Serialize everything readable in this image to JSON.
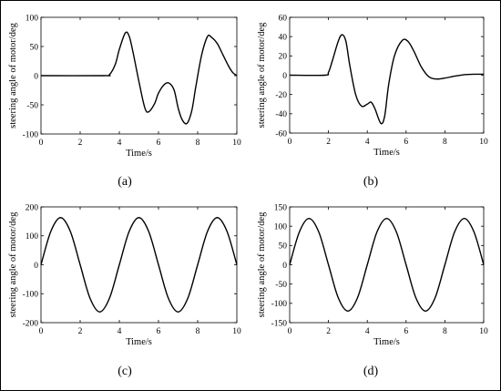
{
  "figure": {
    "border_color": "#000000",
    "line_color": "#000000"
  },
  "chart_data": [
    {
      "type": "line",
      "panel": "(a)",
      "xlabel": "Time/s",
      "ylabel": "steering angle of motor/deg",
      "xlim": [
        0,
        10
      ],
      "ylim": [
        -100,
        100
      ],
      "xticks": [
        0,
        2,
        4,
        6,
        8,
        10
      ],
      "yticks": [
        -100,
        -50,
        0,
        50,
        100
      ],
      "grid": false,
      "series": [
        {
          "x": [
            0,
            3.2,
            3.5,
            3.8,
            4.0,
            4.3,
            4.5,
            4.7,
            5.0,
            5.3,
            5.5,
            5.8,
            6.0,
            6.3,
            6.55,
            6.8,
            7.0,
            7.2,
            7.45,
            7.7,
            7.9,
            8.2,
            8.5,
            8.7,
            9.0,
            9.3,
            9.6,
            9.8,
            10.0
          ],
          "y": [
            0,
            0,
            2,
            20,
            45,
            73,
            68,
            40,
            -10,
            -55,
            -62,
            -48,
            -30,
            -15,
            -13,
            -25,
            -55,
            -75,
            -82,
            -60,
            -20,
            35,
            67,
            66,
            55,
            35,
            15,
            5,
            0
          ]
        }
      ]
    },
    {
      "type": "line",
      "panel": "(b)",
      "xlabel": "Time/s",
      "ylabel": "steering angle of motor/deg",
      "xlim": [
        0,
        10
      ],
      "ylim": [
        -60,
        60
      ],
      "xticks": [
        0,
        2,
        4,
        6,
        8,
        10
      ],
      "yticks": [
        -60,
        -40,
        -20,
        0,
        20,
        40,
        60
      ],
      "grid": false,
      "series": [
        {
          "x": [
            0,
            1.8,
            2.0,
            2.2,
            2.5,
            2.7,
            2.9,
            3.1,
            3.4,
            3.7,
            4.0,
            4.2,
            4.4,
            4.7,
            4.9,
            5.1,
            5.4,
            5.8,
            6.1,
            6.4,
            6.8,
            7.2,
            7.6,
            8.0,
            8.5,
            9.0,
            9.5,
            10.0
          ],
          "y": [
            0,
            0,
            3,
            15,
            35,
            42,
            35,
            10,
            -20,
            -32,
            -30,
            -28,
            -35,
            -50,
            -42,
            -10,
            20,
            36,
            35,
            25,
            8,
            -2,
            -4,
            -3,
            -1,
            0.5,
            1,
            1
          ]
        }
      ]
    },
    {
      "type": "line",
      "panel": "(c)",
      "xlabel": "Time/s",
      "ylabel": "steering angle of motor/deg",
      "xlim": [
        0,
        10
      ],
      "ylim": [
        -200,
        200
      ],
      "xticks": [
        0,
        2,
        4,
        6,
        8,
        10
      ],
      "yticks": [
        -200,
        -100,
        0,
        100,
        200
      ],
      "grid": false,
      "series": [
        {
          "x": [
            0,
            0.5,
            1.0,
            1.5,
            2.0,
            2.5,
            3.0,
            3.5,
            4.0,
            4.5,
            5.0,
            5.5,
            6.0,
            6.5,
            7.0,
            7.5,
            8.0,
            8.5,
            9.0,
            9.5,
            10.0
          ],
          "y": [
            0,
            115,
            163,
            115,
            0,
            -115,
            -163,
            -115,
            0,
            115,
            163,
            115,
            0,
            -115,
            -163,
            -115,
            0,
            115,
            163,
            115,
            0
          ]
        }
      ]
    },
    {
      "type": "line",
      "panel": "(d)",
      "xlabel": "Time/s",
      "ylabel": "steering angle of motor/deg",
      "xlim": [
        0,
        10
      ],
      "ylim": [
        -150,
        150
      ],
      "xticks": [
        0,
        2,
        4,
        6,
        8,
        10
      ],
      "yticks": [
        -150,
        -100,
        -50,
        0,
        50,
        100,
        150
      ],
      "grid": false,
      "series": [
        {
          "x": [
            0,
            0.5,
            1.0,
            1.5,
            2.0,
            2.5,
            3.0,
            3.5,
            4.0,
            4.5,
            5.0,
            5.5,
            6.0,
            6.5,
            7.0,
            7.5,
            8.0,
            8.5,
            9.0,
            9.5,
            10.0
          ],
          "y": [
            0,
            85,
            120,
            85,
            0,
            -85,
            -120,
            -85,
            0,
            85,
            120,
            85,
            0,
            -85,
            -120,
            -85,
            0,
            85,
            120,
            85,
            0
          ]
        }
      ]
    }
  ]
}
